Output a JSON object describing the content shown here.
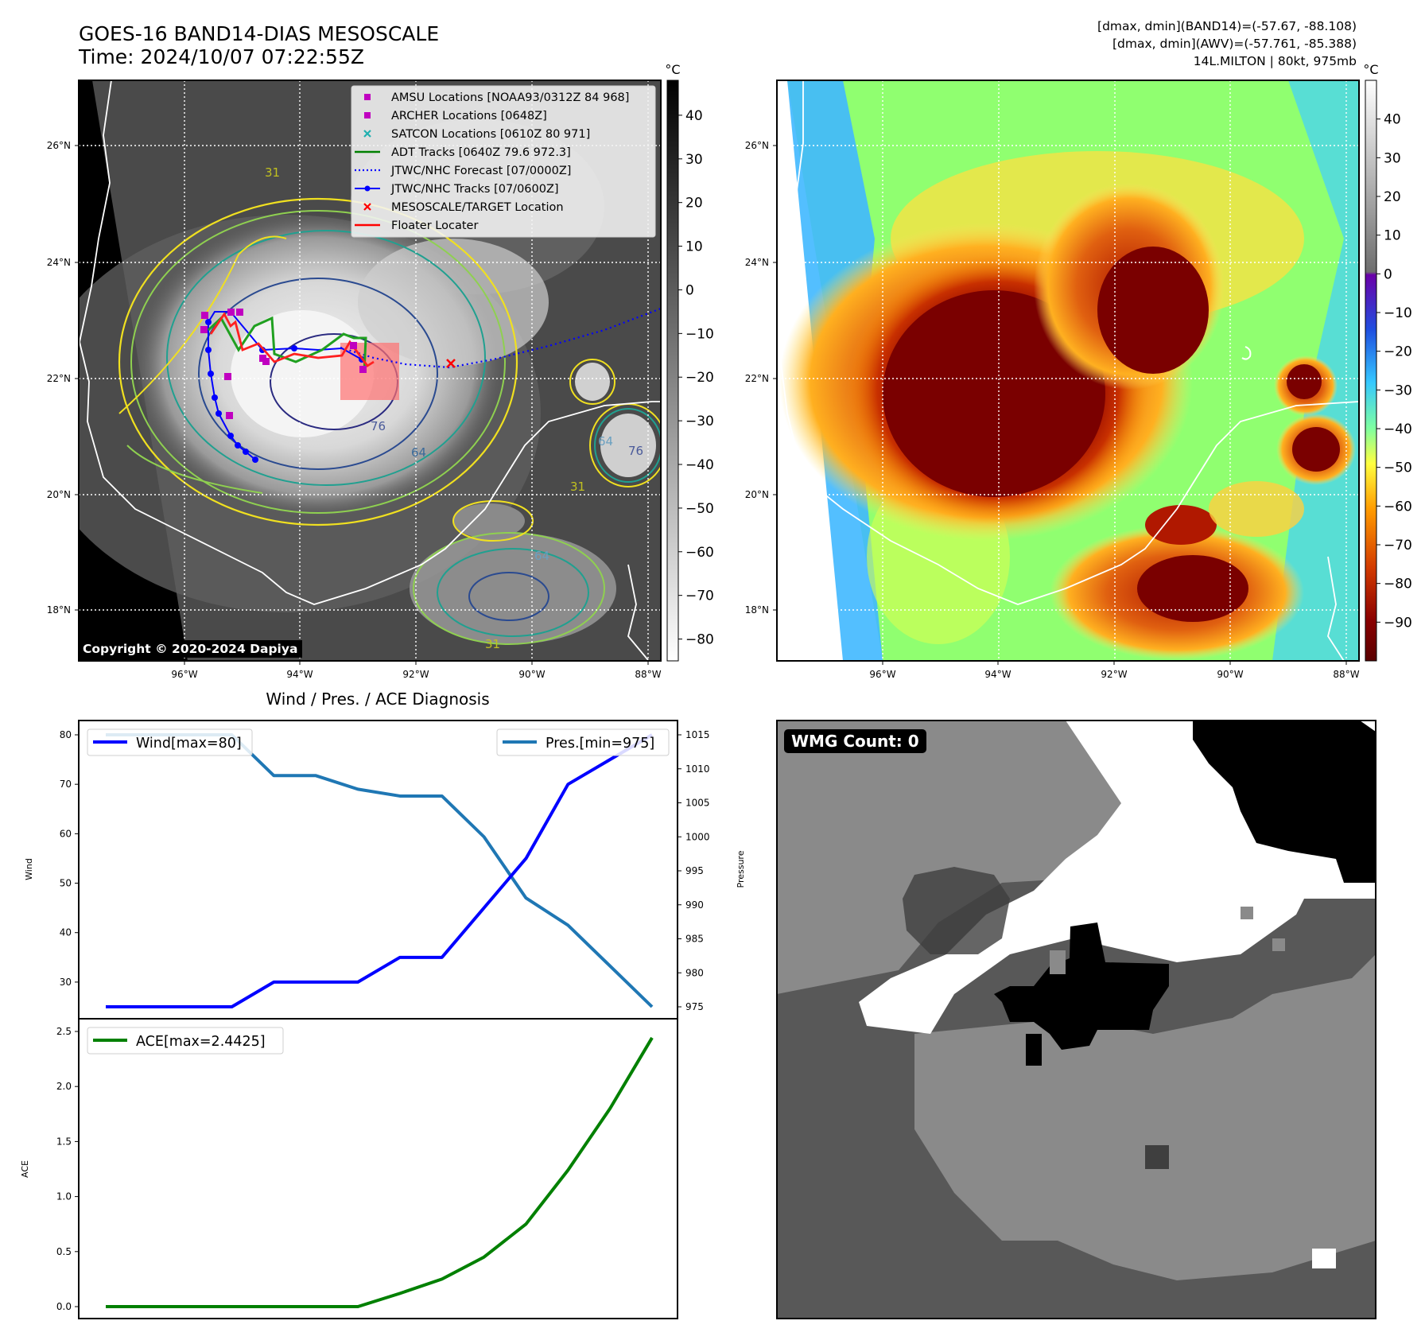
{
  "header": {
    "title_line1": "GOES-16 BAND14-DIAS MESOSCALE",
    "title_line2": "Time: 2024/10/07 07:22:55Z",
    "info_line1": "[dmax, dmin](BAND14)=(-57.67, -88.108)",
    "info_line2": "[dmax, dmin](AWV)=(-57.761, -85.388)",
    "info_line3": "14L.MILTON | 80kt, 975mb"
  },
  "copyright": "Copyright © 2020-2024 Dapiya",
  "map": {
    "lon_ticks": [
      "96°W",
      "94°W",
      "92°W",
      "90°W",
      "88°W"
    ],
    "lat_ticks": [
      "26°N",
      "24°N",
      "22°N",
      "20°N",
      "18°N"
    ],
    "legend": [
      {
        "label": "AMSU Locations [NOAA93/0312Z 84 968]",
        "marker": "square",
        "color": "#c000c0"
      },
      {
        "label": "ARCHER Locations [0648Z]",
        "marker": "square",
        "color": "#c000c0"
      },
      {
        "label": "SATCON Locations [0610Z 80 971]",
        "marker": "x",
        "color": "#20b0b0"
      },
      {
        "label": "ADT Tracks [0640Z 79.6 972.3]",
        "marker": "line",
        "color": "#008000"
      },
      {
        "label": "JTWC/NHC Forecast [07/0000Z]",
        "marker": "dotted",
        "color": "#0000ff"
      },
      {
        "label": "JTWC/NHC Tracks [07/0600Z]",
        "marker": "line-dot",
        "color": "#0000ff"
      },
      {
        "label": "MESOSCALE/TARGET Location",
        "marker": "x",
        "color": "#ff0000"
      },
      {
        "label": "Floater Locater",
        "marker": "line",
        "color": "#ff0000"
      }
    ],
    "contour_labels": [
      "76",
      "64",
      "31",
      "64",
      "76",
      "31",
      "64",
      "31"
    ]
  },
  "colorbar_gray": {
    "unit": "°C",
    "ticks": [
      "40",
      "30",
      "20",
      "10",
      "0",
      "−10",
      "−20",
      "−30",
      "−40",
      "−50",
      "−60",
      "−70",
      "−80"
    ]
  },
  "colorbar_color": {
    "unit": "°C",
    "ticks": [
      "40",
      "30",
      "20",
      "10",
      "0",
      "−10",
      "−20",
      "−30",
      "−40",
      "−50",
      "−60",
      "−70",
      "−80",
      "−90"
    ]
  },
  "chart_data": [
    {
      "type": "line",
      "title": "Wind / Pres. / ACE Diagnosis",
      "ylabel": "Wind",
      "y2label": "Pressure",
      "ylim": [
        25,
        80
      ],
      "y2lim": [
        975,
        1015
      ],
      "yticks": [
        30,
        40,
        50,
        60,
        70,
        80
      ],
      "y2ticks": [
        975,
        980,
        985,
        990,
        995,
        1000,
        1005,
        1010,
        1015
      ],
      "series": [
        {
          "name": "Wind[max=80]",
          "axis": "left",
          "color": "#0000ff",
          "values": [
            25,
            25,
            25,
            25,
            30,
            30,
            30,
            35,
            35,
            45,
            55,
            70,
            75,
            80
          ]
        },
        {
          "name": "Pres.[min=975]",
          "axis": "right",
          "color": "#1f77b4",
          "values": [
            1015,
            1015,
            1015,
            1015,
            1009,
            1009,
            1007,
            1006,
            1006,
            1000,
            991,
            987,
            981,
            975
          ]
        }
      ]
    },
    {
      "type": "line",
      "ylabel": "ACE",
      "ylim": [
        0,
        2.5
      ],
      "yticks": [
        "0.0",
        "0.5",
        "1.0",
        "1.5",
        "2.0",
        "2.5"
      ],
      "series": [
        {
          "name": "ACE[max=2.4425]",
          "color": "#008000",
          "values": [
            0,
            0,
            0,
            0,
            0,
            0,
            0,
            0.12,
            0.25,
            0.45,
            0.75,
            1.24,
            1.8,
            2.4425
          ]
        }
      ]
    }
  ],
  "wmg": {
    "label": "WMG Count: 0"
  }
}
